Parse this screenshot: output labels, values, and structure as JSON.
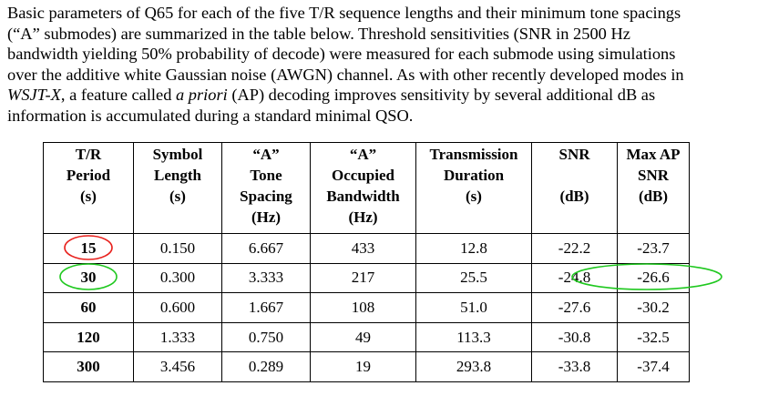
{
  "paragraph": {
    "lines": [
      [
        "Basic parameters of Q65 for each of the five T/R sequence lengths and their minimum tone spacings"
      ],
      [
        "(“A” submodes) are summarized in the table below. Threshold sensitivities (SNR in 2500 Hz"
      ],
      [
        "bandwidth yielding 50% probability of decode) were measured for each submode using simulations"
      ],
      [
        "over the additive white Gaussian noise (AWGN) channel. As with other recently developed modes in"
      ],
      [
        "WSJT-X",
        ", a feature called ",
        "a priori",
        " (AP) decoding improves sensitivity by several additional dB as"
      ],
      [
        "information is accumulated during a standard minimal QSO."
      ]
    ]
  },
  "table": {
    "headers": [
      {
        "lines": [
          "T/R",
          "Period",
          "(s)"
        ]
      },
      {
        "lines": [
          "Symbol",
          "Length",
          "(s)"
        ]
      },
      {
        "lines": [
          "“A”",
          "Tone",
          "Spacing",
          "(Hz)"
        ]
      },
      {
        "lines": [
          "“A”",
          "Occupied",
          "Bandwidth",
          "(Hz)"
        ]
      },
      {
        "lines": [
          "Transmission",
          "Duration",
          "(s)"
        ]
      },
      {
        "lines": [
          "SNR",
          "",
          "(dB)"
        ]
      },
      {
        "lines": [
          "Max AP",
          "SNR",
          "(dB)"
        ]
      }
    ],
    "rows": [
      [
        "15",
        "0.150",
        "6.667",
        "433",
        "12.8",
        "-22.2",
        "-23.7"
      ],
      [
        "30",
        "0.300",
        "3.333",
        "217",
        "25.5",
        "-24.8",
        "-26.6"
      ],
      [
        "60",
        "0.600",
        "1.667",
        "108",
        "51.0",
        "-27.6",
        "-30.2"
      ],
      [
        "120",
        "1.333",
        "0.750",
        "49",
        "113.3",
        "-30.8",
        "-32.5"
      ],
      [
        "300",
        "3.456",
        "0.289",
        "19",
        "293.8",
        "-33.8",
        "-37.4"
      ]
    ]
  },
  "annotations": {
    "red_circle_color": "#e8201c",
    "green_circle_color": "#1fc81f"
  }
}
